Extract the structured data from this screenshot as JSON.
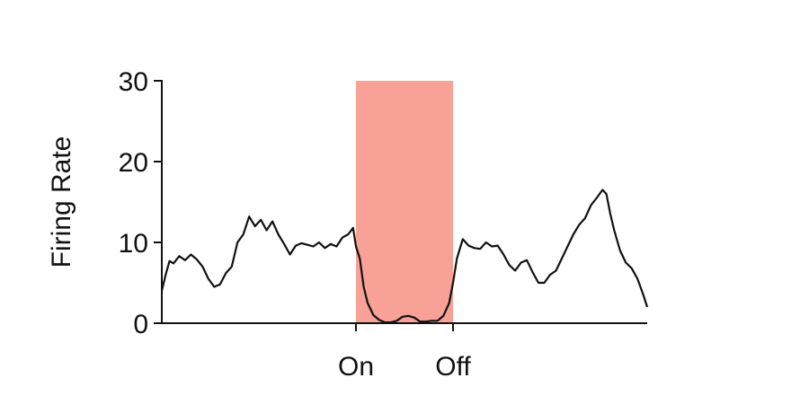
{
  "chart_data": {
    "type": "line",
    "title": "",
    "xlabel": "",
    "ylabel": "Firing Rate",
    "ylim": [
      0,
      30
    ],
    "yticks": [
      0,
      10,
      20,
      30
    ],
    "xlim": [
      0,
      5
    ],
    "xticks": [
      {
        "value": 2,
        "label": "On"
      },
      {
        "value": 3,
        "label": "Off"
      }
    ],
    "stimulus_window": {
      "start": 2,
      "end": 3,
      "color": "#f8a196"
    },
    "grid": false,
    "legend": "none",
    "series": [
      {
        "color": "#111111",
        "points": [
          [
            0.0,
            4.0
          ],
          [
            0.04,
            6.0
          ],
          [
            0.08,
            7.7
          ],
          [
            0.12,
            7.4
          ],
          [
            0.18,
            8.3
          ],
          [
            0.24,
            7.8
          ],
          [
            0.3,
            8.5
          ],
          [
            0.36,
            7.9
          ],
          [
            0.42,
            7.0
          ],
          [
            0.48,
            5.5
          ],
          [
            0.54,
            4.5
          ],
          [
            0.6,
            4.8
          ],
          [
            0.66,
            6.2
          ],
          [
            0.72,
            7.0
          ],
          [
            0.78,
            10.0
          ],
          [
            0.84,
            11.0
          ],
          [
            0.9,
            13.2
          ],
          [
            0.96,
            12.0
          ],
          [
            1.02,
            12.8
          ],
          [
            1.08,
            11.5
          ],
          [
            1.14,
            12.6
          ],
          [
            1.2,
            11.0
          ],
          [
            1.26,
            9.8
          ],
          [
            1.32,
            8.5
          ],
          [
            1.38,
            9.6
          ],
          [
            1.44,
            9.9
          ],
          [
            1.5,
            9.7
          ],
          [
            1.56,
            9.5
          ],
          [
            1.62,
            10.0
          ],
          [
            1.68,
            9.3
          ],
          [
            1.74,
            9.8
          ],
          [
            1.8,
            9.5
          ],
          [
            1.86,
            10.6
          ],
          [
            1.92,
            11.0
          ],
          [
            1.97,
            11.8
          ],
          [
            2.0,
            9.5
          ],
          [
            2.04,
            8.0
          ],
          [
            2.08,
            4.5
          ],
          [
            2.12,
            2.5
          ],
          [
            2.18,
            1.0
          ],
          [
            2.24,
            0.4
          ],
          [
            2.3,
            0.1
          ],
          [
            2.36,
            0.1
          ],
          [
            2.42,
            0.3
          ],
          [
            2.48,
            0.8
          ],
          [
            2.54,
            0.9
          ],
          [
            2.6,
            0.7
          ],
          [
            2.66,
            0.2
          ],
          [
            2.72,
            0.2
          ],
          [
            2.78,
            0.3
          ],
          [
            2.84,
            0.3
          ],
          [
            2.9,
            0.9
          ],
          [
            2.96,
            2.5
          ],
          [
            3.0,
            5.0
          ],
          [
            3.04,
            8.0
          ],
          [
            3.1,
            10.4
          ],
          [
            3.16,
            9.6
          ],
          [
            3.22,
            9.3
          ],
          [
            3.28,
            9.2
          ],
          [
            3.34,
            10.0
          ],
          [
            3.4,
            9.5
          ],
          [
            3.46,
            9.6
          ],
          [
            3.52,
            8.5
          ],
          [
            3.58,
            7.2
          ],
          [
            3.64,
            6.5
          ],
          [
            3.7,
            7.5
          ],
          [
            3.76,
            7.8
          ],
          [
            3.82,
            6.3
          ],
          [
            3.88,
            5.0
          ],
          [
            3.94,
            5.0
          ],
          [
            4.0,
            6.0
          ],
          [
            4.06,
            6.5
          ],
          [
            4.12,
            8.0
          ],
          [
            4.18,
            9.5
          ],
          [
            4.24,
            11.0
          ],
          [
            4.3,
            12.2
          ],
          [
            4.36,
            13.0
          ],
          [
            4.42,
            14.6
          ],
          [
            4.48,
            15.5
          ],
          [
            4.54,
            16.5
          ],
          [
            4.58,
            16.0
          ],
          [
            4.62,
            13.5
          ],
          [
            4.66,
            11.5
          ],
          [
            4.72,
            9.0
          ],
          [
            4.78,
            7.5
          ],
          [
            4.84,
            6.8
          ],
          [
            4.9,
            5.5
          ],
          [
            4.96,
            3.5
          ],
          [
            5.0,
            2.0
          ]
        ]
      }
    ]
  }
}
